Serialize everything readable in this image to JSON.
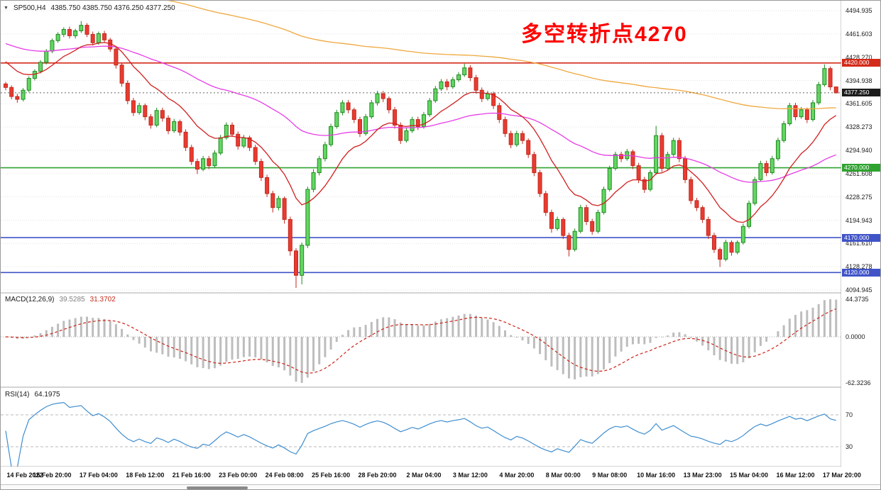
{
  "header": {
    "symbol": "SP500,H4",
    "ohlc": "4385.750 4385.750 4376.250 4377.250"
  },
  "icons": {
    "symbol_marker": "▼"
  },
  "annotation": {
    "text": "多空转折点4270",
    "color": "#ff0000"
  },
  "chart_data": {
    "type": "candlestick",
    "title": "SP500,H4",
    "timeframe": "H4",
    "candles_per_label": 8,
    "x_labels": [
      "14 Feb 2022",
      "15 Feb 20:00",
      "17 Feb 04:00",
      "18 Feb 12:00",
      "21 Feb 16:00",
      "23 Feb 00:00",
      "24 Feb 08:00",
      "25 Feb 16:00",
      "28 Feb 20:00",
      "2 Mar 04:00",
      "3 Mar 12:00",
      "4 Mar 20:00",
      "8 Mar 00:00",
      "9 Mar 08:00",
      "10 Mar 16:00",
      "13 Mar 23:00",
      "15 Mar 04:00",
      "16 Mar 12:00",
      "17 Mar 20:00"
    ],
    "price_axis_labels": [
      "4494.935",
      "4461.603",
      "4428.270",
      "4394.938",
      "4361.605",
      "4328.273",
      "4294.940",
      "4261.608",
      "4228.275",
      "4194.943",
      "4161.610",
      "4128.278",
      "4094.945"
    ],
    "candles": [
      [
        4390,
        4393,
        4381,
        4385
      ],
      [
        4385,
        4388,
        4368,
        4372
      ],
      [
        4372,
        4376,
        4363,
        4368
      ],
      [
        4368,
        4384,
        4365,
        4381
      ],
      [
        4381,
        4401,
        4378,
        4398
      ],
      [
        4398,
        4411,
        4395,
        4408
      ],
      [
        4408,
        4424,
        4405,
        4421
      ],
      [
        4421,
        4440,
        4418,
        4437
      ],
      [
        4437,
        4455,
        4434,
        4452
      ],
      [
        4452,
        4464,
        4449,
        4461
      ],
      [
        4461,
        4471,
        4457,
        4468
      ],
      [
        4468,
        4472,
        4455,
        4459
      ],
      [
        4459,
        4469,
        4455,
        4466
      ],
      [
        4466,
        4480,
        4463,
        4474
      ],
      [
        4474,
        4477,
        4457,
        4461
      ],
      [
        4461,
        4465,
        4445,
        4449
      ],
      [
        4449,
        4465,
        4446,
        4462
      ],
      [
        4462,
        4466,
        4449,
        4453
      ],
      [
        4453,
        4456,
        4436,
        4440
      ],
      [
        4440,
        4444,
        4412,
        4417
      ],
      [
        4417,
        4420,
        4386,
        4391
      ],
      [
        4391,
        4395,
        4361,
        4366
      ],
      [
        4366,
        4370,
        4344,
        4349
      ],
      [
        4349,
        4363,
        4346,
        4359
      ],
      [
        4359,
        4362,
        4338,
        4343
      ],
      [
        4343,
        4347,
        4326,
        4331
      ],
      [
        4331,
        4356,
        4328,
        4352
      ],
      [
        4352,
        4356,
        4336,
        4341
      ],
      [
        4341,
        4345,
        4318,
        4323
      ],
      [
        4323,
        4340,
        4320,
        4336
      ],
      [
        4336,
        4339,
        4316,
        4321
      ],
      [
        4321,
        4325,
        4294,
        4299
      ],
      [
        4299,
        4303,
        4274,
        4279
      ],
      [
        4279,
        4283,
        4261,
        4268
      ],
      [
        4268,
        4287,
        4265,
        4283
      ],
      [
        4283,
        4287,
        4268,
        4273
      ],
      [
        4273,
        4295,
        4270,
        4291
      ],
      [
        4291,
        4317,
        4288,
        4313
      ],
      [
        4313,
        4335,
        4310,
        4331
      ],
      [
        4331,
        4335,
        4314,
        4318
      ],
      [
        4318,
        4322,
        4296,
        4301
      ],
      [
        4301,
        4317,
        4298,
        4313
      ],
      [
        4313,
        4316,
        4294,
        4299
      ],
      [
        4299,
        4303,
        4274,
        4279
      ],
      [
        4279,
        4283,
        4251,
        4256
      ],
      [
        4256,
        4260,
        4228,
        4233
      ],
      [
        4233,
        4237,
        4206,
        4213
      ],
      [
        4213,
        4230,
        4209,
        4226
      ],
      [
        4226,
        4229,
        4190,
        4196
      ],
      [
        4196,
        4200,
        4144,
        4151
      ],
      [
        4151,
        4155,
        4098,
        4116
      ],
      [
        4116,
        4163,
        4103,
        4159
      ],
      [
        4159,
        4243,
        4155,
        4239
      ],
      [
        4239,
        4268,
        4235,
        4263
      ],
      [
        4263,
        4287,
        4259,
        4283
      ],
      [
        4283,
        4307,
        4279,
        4303
      ],
      [
        4303,
        4333,
        4300,
        4329
      ],
      [
        4329,
        4353,
        4326,
        4349
      ],
      [
        4349,
        4367,
        4345,
        4363
      ],
      [
        4363,
        4367,
        4348,
        4353
      ],
      [
        4353,
        4356,
        4334,
        4339
      ],
      [
        4339,
        4343,
        4314,
        4319
      ],
      [
        4319,
        4347,
        4316,
        4343
      ],
      [
        4343,
        4367,
        4340,
        4363
      ],
      [
        4363,
        4380,
        4359,
        4376
      ],
      [
        4376,
        4380,
        4364,
        4369
      ],
      [
        4369,
        4372,
        4348,
        4353
      ],
      [
        4353,
        4357,
        4326,
        4331
      ],
      [
        4331,
        4335,
        4304,
        4309
      ],
      [
        4309,
        4327,
        4306,
        4323
      ],
      [
        4323,
        4343,
        4320,
        4339
      ],
      [
        4339,
        4343,
        4324,
        4329
      ],
      [
        4329,
        4350,
        4326,
        4346
      ],
      [
        4346,
        4370,
        4343,
        4366
      ],
      [
        4366,
        4387,
        4363,
        4383
      ],
      [
        4383,
        4397,
        4380,
        4393
      ],
      [
        4393,
        4397,
        4381,
        4386
      ],
      [
        4386,
        4400,
        4383,
        4396
      ],
      [
        4396,
        4407,
        4393,
        4403
      ],
      [
        4403,
        4419,
        4400,
        4413
      ],
      [
        4413,
        4417,
        4394,
        4399
      ],
      [
        4399,
        4403,
        4376,
        4381
      ],
      [
        4381,
        4385,
        4364,
        4369
      ],
      [
        4369,
        4380,
        4366,
        4376
      ],
      [
        4376,
        4379,
        4354,
        4359
      ],
      [
        4359,
        4363,
        4334,
        4339
      ],
      [
        4339,
        4343,
        4314,
        4319
      ],
      [
        4319,
        4323,
        4298,
        4303
      ],
      [
        4303,
        4323,
        4300,
        4319
      ],
      [
        4319,
        4323,
        4304,
        4309
      ],
      [
        4309,
        4312,
        4284,
        4289
      ],
      [
        4289,
        4293,
        4258,
        4263
      ],
      [
        4263,
        4267,
        4228,
        4233
      ],
      [
        4233,
        4237,
        4201,
        4206
      ],
      [
        4206,
        4210,
        4177,
        4183
      ],
      [
        4183,
        4200,
        4180,
        4196
      ],
      [
        4196,
        4199,
        4168,
        4173
      ],
      [
        4173,
        4177,
        4143,
        4153
      ],
      [
        4153,
        4183,
        4150,
        4179
      ],
      [
        4179,
        4217,
        4176,
        4213
      ],
      [
        4213,
        4217,
        4188,
        4193
      ],
      [
        4193,
        4197,
        4174,
        4179
      ],
      [
        4179,
        4210,
        4176,
        4206
      ],
      [
        4206,
        4243,
        4203,
        4239
      ],
      [
        4239,
        4273,
        4236,
        4269
      ],
      [
        4269,
        4293,
        4266,
        4289
      ],
      [
        4289,
        4293,
        4278,
        4283
      ],
      [
        4283,
        4297,
        4280,
        4293
      ],
      [
        4293,
        4296,
        4268,
        4273
      ],
      [
        4273,
        4277,
        4248,
        4253
      ],
      [
        4253,
        4257,
        4234,
        4239
      ],
      [
        4239,
        4267,
        4236,
        4263
      ],
      [
        4263,
        4330,
        4260,
        4316
      ],
      [
        4316,
        4320,
        4264,
        4269
      ],
      [
        4269,
        4293,
        4266,
        4289
      ],
      [
        4289,
        4313,
        4286,
        4309
      ],
      [
        4309,
        4313,
        4278,
        4283
      ],
      [
        4283,
        4287,
        4248,
        4253
      ],
      [
        4253,
        4257,
        4218,
        4223
      ],
      [
        4223,
        4227,
        4208,
        4213
      ],
      [
        4213,
        4216,
        4191,
        4196
      ],
      [
        4196,
        4200,
        4168,
        4173
      ],
      [
        4173,
        4177,
        4148,
        4153
      ],
      [
        4153,
        4156,
        4128,
        4139
      ],
      [
        4139,
        4167,
        4136,
        4163
      ],
      [
        4163,
        4166,
        4144,
        4149
      ],
      [
        4149,
        4166,
        4146,
        4163
      ],
      [
        4163,
        4190,
        4160,
        4186
      ],
      [
        4186,
        4223,
        4183,
        4219
      ],
      [
        4219,
        4257,
        4216,
        4253
      ],
      [
        4253,
        4280,
        4250,
        4276
      ],
      [
        4276,
        4280,
        4258,
        4263
      ],
      [
        4263,
        4287,
        4260,
        4283
      ],
      [
        4283,
        4313,
        4280,
        4309
      ],
      [
        4309,
        4337,
        4306,
        4333
      ],
      [
        4333,
        4363,
        4330,
        4359
      ],
      [
        4359,
        4363,
        4338,
        4343
      ],
      [
        4343,
        4357,
        4340,
        4353
      ],
      [
        4353,
        4356,
        4334,
        4339
      ],
      [
        4339,
        4367,
        4336,
        4363
      ],
      [
        4363,
        4393,
        4360,
        4389
      ],
      [
        4389,
        4418,
        4386,
        4412
      ],
      [
        4412,
        4415,
        4381,
        4385.75
      ],
      [
        4385.75,
        4385.75,
        4376.25,
        4377.25
      ]
    ],
    "levels": [
      {
        "price": 4420.0,
        "badge": "4420.000",
        "color": "#d42a1a"
      },
      {
        "price": 4270.0,
        "badge": "4270.000",
        "color": "#2fa32f"
      },
      {
        "price": 4170.0,
        "badge": "4170.000",
        "color": "#4054c8"
      },
      {
        "price": 4120.0,
        "badge": "4120.000",
        "color": "#4054c8"
      }
    ],
    "current_price": {
      "value": 4377.25,
      "badge": "4377.250"
    },
    "moving_averages": [
      {
        "name": "slow-ma",
        "period": 200,
        "seed": 4545,
        "color": "#efa73e"
      },
      {
        "name": "medium-ma",
        "period": 55,
        "seed": 4450,
        "color": "#e63ce6"
      },
      {
        "name": "fast-ma",
        "period": 13,
        "seed": 4428,
        "color": "#d21f1f"
      }
    ],
    "macd": {
      "label": "MACD(12,26,9)",
      "value_main": "39.5285",
      "value_signal": "31.3702",
      "fast": 12,
      "slow": 26,
      "signal_period": 9,
      "axis_labels": [
        "44.3735",
        "0.0000",
        "-62.3236"
      ],
      "histogram_color": "#bdbdbd",
      "signal_color": "#cc2418"
    },
    "rsi": {
      "label": "RSI(14)",
      "value": "64.1975",
      "period": 14,
      "levels": [
        70,
        30
      ],
      "axis_labels": [
        "70",
        "30"
      ],
      "line_color": "#3f8ed0"
    },
    "style": {
      "bull_fill": "#63d663",
      "bull_stroke": "#208a20",
      "bear_fill": "#ea3b30",
      "bear_stroke": "#c12a20",
      "grid_color": "#e3e3e3",
      "current_badge_color": "#1c1c1c"
    }
  }
}
